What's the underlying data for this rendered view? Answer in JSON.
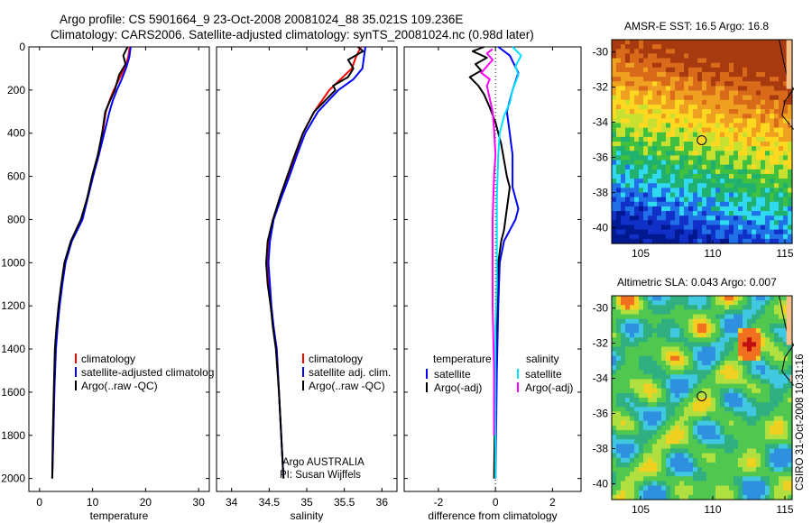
{
  "title": {
    "line1": "Argo profile: CS 5901664_9 23-Oct-2008 20081024_88 35.021S 109.236E",
    "line2": "Climatology: CARS2006. Satellite-adjusted climatology: synTS_20081024.nc (0.98d later)"
  },
  "credit": "CSIRO 31-Oct-2008 10:31:16",
  "colors": {
    "climatology": "#ff0000",
    "satellite": "#0000ff",
    "argo": "#000000",
    "salinity_satellite": "#00e0ff",
    "salinity_argo": "#ff00ff"
  },
  "chart_data": [
    {
      "type": "line",
      "id": "temperature",
      "xlabel": "temperature",
      "xlim": [
        -2,
        32
      ],
      "xticks": [
        0,
        10,
        20,
        30
      ],
      "ylim": [
        0,
        2060
      ],
      "yticks": [
        0,
        200,
        400,
        600,
        800,
        1000,
        1200,
        1400,
        1600,
        1800,
        2000
      ],
      "y_reversed": true,
      "legend": [
        "climatology",
        "satellite-adjusted climatolog",
        "Argo(..raw -QC)"
      ],
      "series": [
        {
          "name": "climatology",
          "color": "#ff0000",
          "points": [
            [
              17.0,
              0
            ],
            [
              16.7,
              50
            ],
            [
              16.0,
              100
            ],
            [
              15.0,
              150
            ],
            [
              14.0,
              200
            ],
            [
              13.2,
              250
            ],
            [
              12.5,
              300
            ],
            [
              11.9,
              400
            ],
            [
              11.0,
              500
            ],
            [
              10.0,
              600
            ],
            [
              9.0,
              700
            ],
            [
              8.0,
              800
            ],
            [
              6.0,
              900
            ],
            [
              4.8,
              1000
            ],
            [
              4.2,
              1100
            ],
            [
              3.7,
              1200
            ],
            [
              3.3,
              1300
            ],
            [
              3.0,
              1400
            ],
            [
              2.8,
              1600
            ],
            [
              2.6,
              1800
            ],
            [
              2.4,
              2000
            ]
          ]
        },
        {
          "name": "satellite-adjusted climatolog",
          "color": "#0000ff",
          "points": [
            [
              17.2,
              0
            ],
            [
              16.9,
              50
            ],
            [
              16.3,
              100
            ],
            [
              15.5,
              150
            ],
            [
              14.6,
              200
            ],
            [
              13.8,
              250
            ],
            [
              13.2,
              300
            ],
            [
              12.2,
              400
            ],
            [
              11.2,
              500
            ],
            [
              10.1,
              600
            ],
            [
              9.1,
              700
            ],
            [
              8.1,
              800
            ],
            [
              6.1,
              900
            ],
            [
              4.9,
              1000
            ],
            [
              4.3,
              1100
            ],
            [
              3.8,
              1200
            ],
            [
              3.4,
              1300
            ],
            [
              3.1,
              1400
            ],
            [
              2.8,
              1600
            ],
            [
              2.6,
              1800
            ],
            [
              2.4,
              2000
            ]
          ]
        },
        {
          "name": "Argo(..raw -QC)",
          "color": "#000000",
          "points": [
            [
              16.6,
              0
            ],
            [
              15.8,
              40
            ],
            [
              16.2,
              80
            ],
            [
              15.0,
              130
            ],
            [
              14.2,
              200
            ],
            [
              13.1,
              260
            ],
            [
              12.4,
              300
            ],
            [
              11.8,
              400
            ],
            [
              11.0,
              500
            ],
            [
              9.9,
              600
            ],
            [
              9.0,
              700
            ],
            [
              7.8,
              800
            ],
            [
              5.9,
              900
            ],
            [
              4.7,
              1000
            ],
            [
              4.1,
              1100
            ],
            [
              3.6,
              1200
            ],
            [
              3.2,
              1300
            ],
            [
              2.9,
              1400
            ],
            [
              2.7,
              1600
            ],
            [
              2.5,
              1800
            ],
            [
              2.4,
              2000
            ]
          ]
        }
      ]
    },
    {
      "type": "line",
      "id": "salinity",
      "xlabel": "salinity",
      "xlim": [
        33.8,
        36.2
      ],
      "xticks": [
        34,
        34.5,
        35,
        35.5,
        36
      ],
      "ylim": [
        0,
        2060
      ],
      "y_reversed": true,
      "legend": [
        "climatology",
        "satellite adj. clim.",
        "Argo(..raw -QC)"
      ],
      "annotation": [
        "Argo AUSTRALIA",
        "PI: Susan Wijffels"
      ],
      "series": [
        {
          "name": "climatology",
          "color": "#ff0000",
          "points": [
            [
              35.72,
              0
            ],
            [
              35.65,
              50
            ],
            [
              35.6,
              100
            ],
            [
              35.45,
              150
            ],
            [
              35.3,
              200
            ],
            [
              35.1,
              300
            ],
            [
              34.95,
              400
            ],
            [
              34.85,
              500
            ],
            [
              34.75,
              600
            ],
            [
              34.65,
              700
            ],
            [
              34.55,
              800
            ],
            [
              34.5,
              900
            ],
            [
              34.48,
              1000
            ],
            [
              34.5,
              1100
            ],
            [
              34.52,
              1200
            ],
            [
              34.56,
              1300
            ],
            [
              34.6,
              1400
            ],
            [
              34.63,
              1600
            ],
            [
              34.66,
              1800
            ],
            [
              34.69,
              2000
            ]
          ]
        },
        {
          "name": "satellite adj. clim.",
          "color": "#0000ff",
          "points": [
            [
              35.78,
              0
            ],
            [
              35.76,
              50
            ],
            [
              35.74,
              100
            ],
            [
              35.62,
              150
            ],
            [
              35.42,
              200
            ],
            [
              35.15,
              300
            ],
            [
              34.98,
              400
            ],
            [
              34.87,
              500
            ],
            [
              34.77,
              600
            ],
            [
              34.66,
              700
            ],
            [
              34.56,
              800
            ],
            [
              34.51,
              900
            ],
            [
              34.49,
              1000
            ],
            [
              34.51,
              1100
            ],
            [
              34.53,
              1200
            ],
            [
              34.56,
              1300
            ],
            [
              34.6,
              1400
            ],
            [
              34.63,
              1600
            ],
            [
              34.66,
              1800
            ],
            [
              34.69,
              2000
            ]
          ]
        },
        {
          "name": "Argo(..raw -QC)",
          "color": "#000000",
          "points": [
            [
              35.68,
              0
            ],
            [
              35.75,
              20
            ],
            [
              35.55,
              60
            ],
            [
              35.62,
              100
            ],
            [
              35.55,
              140
            ],
            [
              35.35,
              180
            ],
            [
              35.38,
              200
            ],
            [
              35.1,
              300
            ],
            [
              34.95,
              400
            ],
            [
              34.84,
              500
            ],
            [
              34.74,
              600
            ],
            [
              34.64,
              700
            ],
            [
              34.55,
              800
            ],
            [
              34.48,
              900
            ],
            [
              34.46,
              1000
            ],
            [
              34.48,
              1100
            ],
            [
              34.52,
              1200
            ],
            [
              34.55,
              1300
            ],
            [
              34.59,
              1400
            ],
            [
              34.63,
              1600
            ],
            [
              34.66,
              1800
            ],
            [
              34.69,
              2000
            ]
          ]
        }
      ]
    },
    {
      "type": "line",
      "id": "difference",
      "xlabel": "difference from climatology",
      "xlim": [
        -3.2,
        3.0
      ],
      "xticks": [
        -2,
        0,
        2
      ],
      "ylim": [
        0,
        2060
      ],
      "y_reversed": true,
      "legend": [
        "temperature",
        "satellite",
        "Argo(-adj)",
        "salinity",
        "satellite",
        "Argo(-adj)"
      ],
      "series": [
        {
          "name": "temperature satellite",
          "color": "#0000ff",
          "points": [
            [
              0.1,
              0
            ],
            [
              0.5,
              40
            ],
            [
              0.8,
              120
            ],
            [
              0.6,
              200
            ],
            [
              0.4,
              300
            ],
            [
              0.5,
              400
            ],
            [
              0.6,
              500
            ],
            [
              0.6,
              600
            ],
            [
              0.6,
              650
            ],
            [
              0.7,
              700
            ],
            [
              0.8,
              750
            ],
            [
              0.7,
              800
            ],
            [
              0.5,
              850
            ],
            [
              0.3,
              900
            ],
            [
              0.15,
              1000
            ],
            [
              0.1,
              1200
            ],
            [
              0.05,
              1500
            ],
            [
              0.0,
              2000
            ]
          ]
        },
        {
          "name": "temperature Argo(-adj)",
          "color": "#000000",
          "points": [
            [
              -0.4,
              0
            ],
            [
              -0.8,
              20
            ],
            [
              -0.3,
              50
            ],
            [
              -0.7,
              80
            ],
            [
              -0.5,
              110
            ],
            [
              -0.9,
              140
            ],
            [
              -0.6,
              180
            ],
            [
              -0.4,
              220
            ],
            [
              -0.2,
              280
            ],
            [
              0.0,
              350
            ],
            [
              0.2,
              450
            ],
            [
              0.4,
              600
            ],
            [
              0.5,
              650
            ],
            [
              0.4,
              750
            ],
            [
              0.3,
              850
            ],
            [
              0.2,
              900
            ],
            [
              0.1,
              1000
            ],
            [
              0.05,
              1200
            ],
            [
              0.0,
              1500
            ],
            [
              -0.05,
              2000
            ]
          ]
        },
        {
          "name": "salinity satellite",
          "color": "#00e0ff",
          "points": [
            [
              0.6,
              0
            ],
            [
              0.9,
              40
            ],
            [
              0.7,
              90
            ],
            [
              0.8,
              130
            ],
            [
              0.6,
              200
            ],
            [
              0.5,
              260
            ],
            [
              0.3,
              320
            ],
            [
              0.15,
              400
            ],
            [
              0.1,
              500
            ],
            [
              0.05,
              700
            ],
            [
              0.05,
              900
            ],
            [
              0.05,
              1100
            ],
            [
              0.0,
              1300
            ],
            [
              0.0,
              1600
            ],
            [
              0.0,
              2000
            ]
          ]
        },
        {
          "name": "salinity Argo(-adj)",
          "color": "#ff00ff",
          "points": [
            [
              -0.1,
              10
            ],
            [
              -0.3,
              30
            ],
            [
              -0.1,
              60
            ],
            [
              -0.5,
              120
            ],
            [
              -0.2,
              150
            ],
            [
              -0.3,
              180
            ],
            [
              -0.1,
              300
            ],
            [
              -0.05,
              380
            ],
            [
              0.0,
              500
            ],
            [
              -0.05,
              600
            ],
            [
              -0.1,
              800
            ],
            [
              -0.1,
              1000
            ],
            [
              -0.1,
              1200
            ],
            [
              -0.05,
              1500
            ],
            [
              -0.05,
              1700
            ],
            [
              -0.05,
              1800
            ]
          ]
        }
      ]
    },
    {
      "type": "heatmap",
      "id": "sst-map",
      "title": "AMSR-E SST: 16.5 Argo: 16.8",
      "xlim": [
        103,
        115.5
      ],
      "ylim": [
        -40.9,
        -29.3
      ],
      "xticks": [
        105,
        110,
        115
      ],
      "yticks": [
        -30,
        -32,
        -34,
        -36,
        -38,
        -40
      ],
      "profile_lon": 109.236,
      "profile_lat": -35.021
    },
    {
      "type": "heatmap",
      "id": "sla-map",
      "title": "Altimetric SLA: 0.043 Argo: 0.007",
      "xlim": [
        103,
        115.5
      ],
      "ylim": [
        -40.9,
        -29.3
      ],
      "xticks": [
        105,
        110,
        115
      ],
      "yticks": [
        -30,
        -32,
        -34,
        -36,
        -38,
        -40
      ],
      "profile_lon": 109.236,
      "profile_lat": -35.021
    }
  ]
}
